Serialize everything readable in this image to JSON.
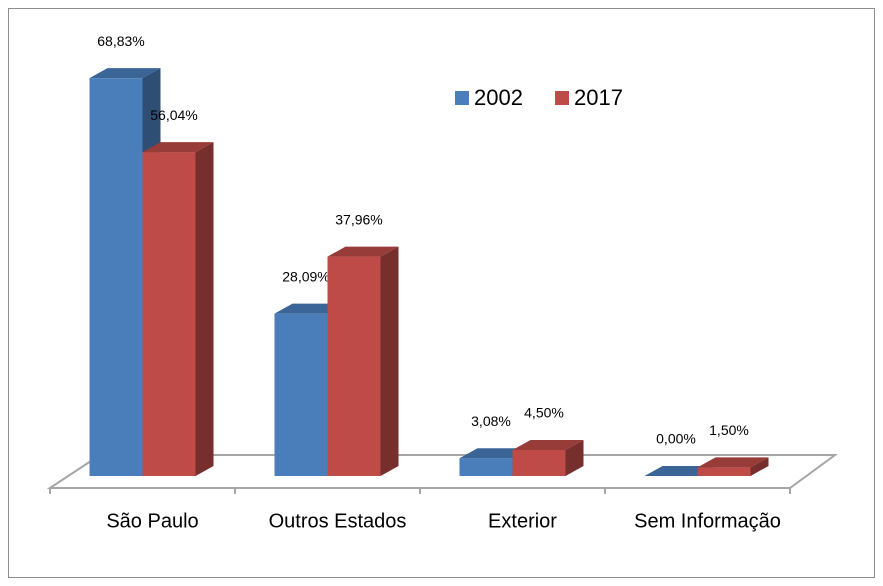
{
  "chart_data": {
    "type": "bar3d",
    "categories": [
      "São Paulo",
      "Outros Estados",
      "Exterior",
      "Sem Informação"
    ],
    "series": [
      {
        "name": "2002",
        "color": "#4a7ebb",
        "values": [
          68.83,
          28.09,
          3.08,
          0.0
        ],
        "value_labels": [
          "68,83%",
          "28,09%",
          "3,08%",
          "0,00%"
        ]
      },
      {
        "name": "2017",
        "color": "#be4b48",
        "values": [
          56.04,
          37.96,
          4.5,
          1.5
        ],
        "value_labels": [
          "56,04%",
          "37,96%",
          "4,50%",
          "1,50%"
        ]
      }
    ],
    "legend": "top-right"
  }
}
